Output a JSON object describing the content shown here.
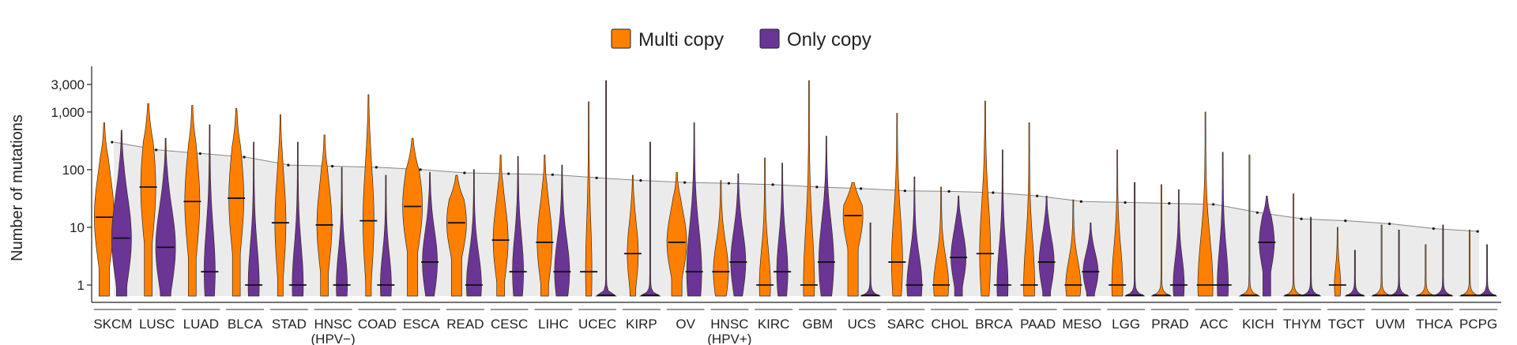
{
  "chart_data": {
    "type": "violin",
    "ylabel": "Number of mutations",
    "yscale": "log",
    "ylim": [
      0.8,
      7000
    ],
    "yticks": [
      {
        "value": 1,
        "label": "1"
      },
      {
        "value": 10,
        "label": "10"
      },
      {
        "value": 100,
        "label": "100"
      },
      {
        "value": 1000,
        "label": "1,000"
      },
      {
        "value": 3000,
        "label": "3,000"
      }
    ],
    "legend": {
      "placement": "top-center",
      "entries": [
        {
          "name": "Multi copy",
          "color": "#FF8000"
        },
        {
          "name": "Only copy",
          "color": "#6B3596"
        }
      ]
    },
    "colors": {
      "multi": "#FF8000",
      "only": "#6B3596",
      "band": "#EBEBEB",
      "trend": "#555555"
    },
    "categories": [
      {
        "name": "SKCM",
        "sub": "",
        "total": 300,
        "multi": {
          "median": 15,
          "max": 650,
          "shape": "wide"
        },
        "only": {
          "median": 6.5,
          "max": 480,
          "shape": "wide"
        }
      },
      {
        "name": "LUSC",
        "sub": "",
        "total": 220,
        "multi": {
          "median": 50,
          "max": 1400,
          "shape": "mid"
        },
        "only": {
          "median": 4.5,
          "max": 350,
          "shape": "wide"
        }
      },
      {
        "name": "LUAD",
        "sub": "",
        "total": 190,
        "multi": {
          "median": 28,
          "max": 1300,
          "shape": "mid"
        },
        "only": {
          "median": 1.7,
          "max": 600,
          "shape": "narrow"
        }
      },
      {
        "name": "BLCA",
        "sub": "",
        "total": 165,
        "multi": {
          "median": 32,
          "max": 1150,
          "shape": "mid"
        },
        "only": {
          "median": 1,
          "max": 300,
          "shape": "narrow"
        }
      },
      {
        "name": "STAD",
        "sub": "",
        "total": 120,
        "multi": {
          "median": 12,
          "max": 900,
          "shape": "narrow"
        },
        "only": {
          "median": 1,
          "max": 300,
          "shape": "narrow"
        }
      },
      {
        "name": "HNSC",
        "sub": "(HPV−)",
        "total": 115,
        "multi": {
          "median": 11,
          "max": 400,
          "shape": "mid"
        },
        "only": {
          "median": 1,
          "max": 110,
          "shape": "narrow"
        }
      },
      {
        "name": "COAD",
        "sub": "",
        "total": 110,
        "multi": {
          "median": 13,
          "max": 2000,
          "shape": "narrow"
        },
        "only": {
          "median": 1,
          "max": 80,
          "shape": "narrow"
        }
      },
      {
        "name": "ESCA",
        "sub": "",
        "total": 100,
        "multi": {
          "median": 23,
          "max": 350,
          "shape": "wide"
        },
        "only": {
          "median": 2.5,
          "max": 90,
          "shape": "mid"
        }
      },
      {
        "name": "READ",
        "sub": "",
        "total": 88,
        "multi": {
          "median": 12,
          "max": 80,
          "shape": "wide"
        },
        "only": {
          "median": 1,
          "max": 100,
          "shape": "mid"
        }
      },
      {
        "name": "CESC",
        "sub": "",
        "total": 85,
        "multi": {
          "median": 6,
          "max": 180,
          "shape": "mid"
        },
        "only": {
          "median": 1.7,
          "max": 170,
          "shape": "narrow"
        }
      },
      {
        "name": "LIHC",
        "sub": "",
        "total": 82,
        "multi": {
          "median": 5.5,
          "max": 180,
          "shape": "mid"
        },
        "only": {
          "median": 1.7,
          "max": 120,
          "shape": "mid"
        }
      },
      {
        "name": "UCEC",
        "sub": "",
        "total": 72,
        "multi": {
          "median": 1.7,
          "max": 1500,
          "shape": "thin"
        },
        "only": {
          "median": 0.8,
          "max": 3500,
          "shape": "flat"
        }
      },
      {
        "name": "KIRP",
        "sub": "",
        "total": 65,
        "multi": {
          "median": 3.5,
          "max": 80,
          "shape": "narrow"
        },
        "only": {
          "median": 0.8,
          "max": 300,
          "shape": "flat"
        }
      },
      {
        "name": "OV",
        "sub": "",
        "total": 60,
        "multi": {
          "median": 5.5,
          "max": 90,
          "shape": "wide"
        },
        "only": {
          "median": 1.7,
          "max": 650,
          "shape": "mid"
        }
      },
      {
        "name": "HNSC",
        "sub": "(HPV+)",
        "total": 58,
        "multi": {
          "median": 1.7,
          "max": 65,
          "shape": "mid"
        },
        "only": {
          "median": 2.5,
          "max": 85,
          "shape": "mid"
        }
      },
      {
        "name": "KIRC",
        "sub": "",
        "total": 55,
        "multi": {
          "median": 1,
          "max": 160,
          "shape": "narrow"
        },
        "only": {
          "median": 1.7,
          "max": 130,
          "shape": "narrow"
        }
      },
      {
        "name": "GBM",
        "sub": "",
        "total": 50,
        "multi": {
          "median": 1,
          "max": 3500,
          "shape": "narrow"
        },
        "only": {
          "median": 2.5,
          "max": 380,
          "shape": "mid"
        }
      },
      {
        "name": "UCS",
        "sub": "",
        "total": 47,
        "multi": {
          "median": 16,
          "max": 60,
          "shape": "wide"
        },
        "only": {
          "median": 0.8,
          "max": 12,
          "shape": "flat"
        }
      },
      {
        "name": "SARC",
        "sub": "",
        "total": 43,
        "multi": {
          "median": 2.5,
          "max": 950,
          "shape": "narrow"
        },
        "only": {
          "median": 1,
          "max": 75,
          "shape": "mid"
        }
      },
      {
        "name": "CHOL",
        "sub": "",
        "total": 42,
        "multi": {
          "median": 1,
          "max": 50,
          "shape": "mid"
        },
        "only": {
          "median": 3,
          "max": 35,
          "shape": "mid"
        }
      },
      {
        "name": "BRCA",
        "sub": "",
        "total": 40,
        "multi": {
          "median": 3.5,
          "max": 1550,
          "shape": "narrow"
        },
        "only": {
          "median": 1,
          "max": 220,
          "shape": "narrow"
        }
      },
      {
        "name": "PAAD",
        "sub": "",
        "total": 35,
        "multi": {
          "median": 1,
          "max": 650,
          "shape": "narrow"
        },
        "only": {
          "median": 2.5,
          "max": 35,
          "shape": "mid"
        }
      },
      {
        "name": "MESO",
        "sub": "",
        "total": 28,
        "multi": {
          "median": 1,
          "max": 30,
          "shape": "mid"
        },
        "only": {
          "median": 1.7,
          "max": 12,
          "shape": "mid"
        }
      },
      {
        "name": "LGG",
        "sub": "",
        "total": 27,
        "multi": {
          "median": 1,
          "max": 220,
          "shape": "narrow"
        },
        "only": {
          "median": 0.8,
          "max": 60,
          "shape": "flat"
        }
      },
      {
        "name": "PRAD",
        "sub": "",
        "total": 26,
        "multi": {
          "median": 0.8,
          "max": 55,
          "shape": "flat"
        },
        "only": {
          "median": 1,
          "max": 45,
          "shape": "narrow"
        }
      },
      {
        "name": "ACC",
        "sub": "",
        "total": 25,
        "multi": {
          "median": 1,
          "max": 1000,
          "shape": "mid"
        },
        "only": {
          "median": 1,
          "max": 200,
          "shape": "narrow"
        }
      },
      {
        "name": "KICH",
        "sub": "",
        "total": 18,
        "multi": {
          "median": 0.8,
          "max": 180,
          "shape": "flat"
        },
        "only": {
          "median": 5.5,
          "max": 35,
          "shape": "mid"
        }
      },
      {
        "name": "THYM",
        "sub": "",
        "total": 14,
        "multi": {
          "median": 0.8,
          "max": 38,
          "shape": "flat"
        },
        "only": {
          "median": 0.8,
          "max": 15,
          "shape": "flat"
        }
      },
      {
        "name": "TGCT",
        "sub": "",
        "total": 13,
        "multi": {
          "median": 1,
          "max": 10,
          "shape": "thin"
        },
        "only": {
          "median": 0.8,
          "max": 4,
          "shape": "flat"
        }
      },
      {
        "name": "UVM",
        "sub": "",
        "total": 11.5,
        "multi": {
          "median": 0.8,
          "max": 11,
          "shape": "flat"
        },
        "only": {
          "median": 0.8,
          "max": 9,
          "shape": "flat"
        }
      },
      {
        "name": "THCA",
        "sub": "",
        "total": 9.5,
        "multi": {
          "median": 0.8,
          "max": 5,
          "shape": "flat"
        },
        "only": {
          "median": 0.8,
          "max": 11,
          "shape": "flat"
        }
      },
      {
        "name": "PCPG",
        "sub": "",
        "total": 8.5,
        "multi": {
          "median": 0.8,
          "max": 9,
          "shape": "flat"
        },
        "only": {
          "median": 0.8,
          "max": 5,
          "shape": "flat"
        }
      }
    ]
  }
}
